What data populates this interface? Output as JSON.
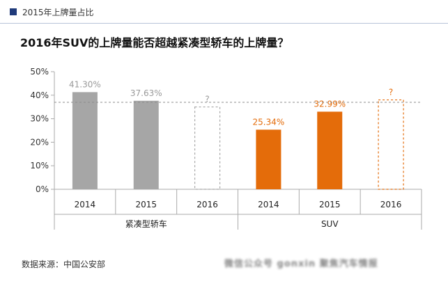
{
  "header": {
    "section_title": "2015年上牌量占比"
  },
  "title": "2016年SUV的上牌量能否超越紧凑型轿车的上牌量？",
  "source": "数据来源：中国公安部",
  "watermark": "微信公众号 gonxin 聚焦汽车情报",
  "colors": {
    "sedan": "#a6a6a6",
    "suv": "#e46c0a",
    "axis": "#aaaaaa",
    "reference": "#8c8c8c",
    "header_marker": "#1f3a7a"
  },
  "chart_data": {
    "type": "bar",
    "title": "2016年SUV的上牌量能否超越紧凑型轿车的上牌量？",
    "ylim": [
      0,
      50
    ],
    "yticks": [
      "0%",
      "10%",
      "20%",
      "30%",
      "40%",
      "50%"
    ],
    "reference_line": 37.0,
    "groups": [
      {
        "name": "紧凑型轿车",
        "color_key": "sedan",
        "bars": [
          {
            "category": "2014",
            "value": 41.3,
            "label": "41.30%",
            "estimated": false
          },
          {
            "category": "2015",
            "value": 37.63,
            "label": "37.63%",
            "estimated": false
          },
          {
            "category": "2016",
            "value": 35.0,
            "label": "?",
            "estimated": true
          }
        ]
      },
      {
        "name": "SUV",
        "color_key": "suv",
        "bars": [
          {
            "category": "2014",
            "value": 25.34,
            "label": "25.34%",
            "estimated": false
          },
          {
            "category": "2015",
            "value": 32.99,
            "label": "32.99%",
            "estimated": false
          },
          {
            "category": "2016",
            "value": 38.0,
            "label": "?",
            "estimated": true
          }
        ]
      }
    ]
  }
}
